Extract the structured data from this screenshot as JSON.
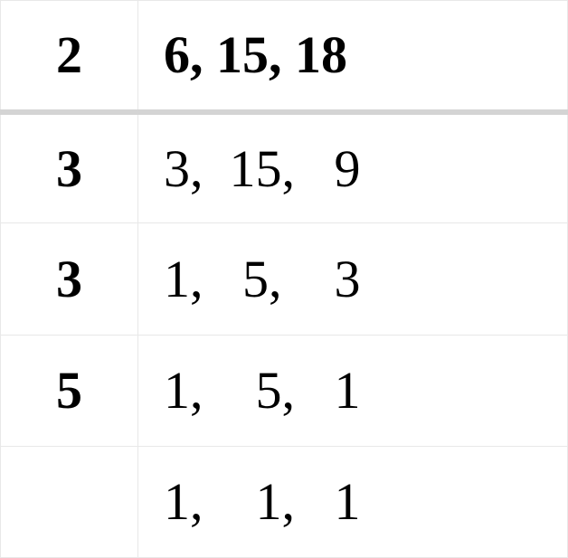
{
  "table": {
    "type": "table",
    "background_color": "#ffffff",
    "border_color": "#e8e8e8",
    "header_divider_color": "#d4d4d4",
    "text_color": "#000000",
    "font_family": "Georgia, Times New Roman, serif",
    "font_size": 58,
    "columns": [
      {
        "name": "divisor",
        "width": 152,
        "align": "center",
        "weight": "bold"
      },
      {
        "name": "values",
        "align": "left",
        "weight": "normal"
      }
    ],
    "rows": [
      {
        "divisor": "2",
        "values": "6, 15, 18",
        "bold": true
      },
      {
        "divisor": "3",
        "values": "3,  15,   9",
        "bold": false
      },
      {
        "divisor": "3",
        "values": "1,   5,    3",
        "bold": false
      },
      {
        "divisor": "5",
        "values": "1,    5,   1",
        "bold": false
      },
      {
        "divisor": "",
        "values": "1,    1,   1",
        "bold": false
      }
    ]
  }
}
